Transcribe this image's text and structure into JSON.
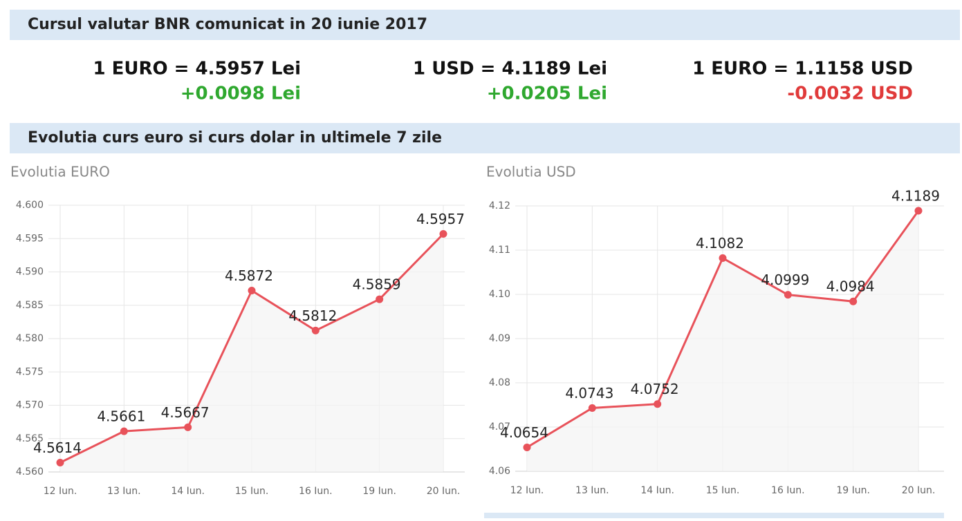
{
  "header": {
    "title": "Cursul valutar BNR comunicat in 20 iunie 2017"
  },
  "rates": [
    {
      "rate": "1 EURO = 4.5957 Lei",
      "change": "+0.0098 Lei",
      "direction": "up"
    },
    {
      "rate": "1 USD = 4.1189 Lei",
      "change": "+0.0205 Lei",
      "direction": "up"
    },
    {
      "rate": "1 EURO = 1.1158 USD",
      "change": "-0.0032 USD",
      "direction": "down"
    }
  ],
  "section": {
    "title": "Evolutia curs euro si curs dolar in ultimele 7 zile"
  },
  "chart_data": [
    {
      "type": "line",
      "title": "Evolutia EURO",
      "categories": [
        "12 Iun.",
        "13 Iun.",
        "14 Iun.",
        "15 Iun.",
        "16 Iun.",
        "19 Iun.",
        "20 Iun."
      ],
      "values": [
        4.5614,
        4.5661,
        4.5667,
        4.5872,
        4.5812,
        4.5859,
        4.5957
      ],
      "color": "#e8525a",
      "grid": true,
      "ylim": [
        4.56,
        4.6
      ],
      "yticks": [
        {
          "value": 4.56,
          "label": "4.560"
        },
        4.565,
        {
          "value": 4.57,
          "label": "4.570"
        },
        4.575,
        {
          "value": 4.58,
          "label": "4.580"
        },
        4.585,
        {
          "value": 4.59,
          "label": "4.590"
        },
        4.595,
        {
          "value": 4.6,
          "label": "4.600"
        }
      ]
    },
    {
      "type": "line",
      "title": "Evolutia USD",
      "categories": [
        "12 Iun.",
        "13 Iun.",
        "14 Iun.",
        "15 Iun.",
        "16 Iun.",
        "19 Iun.",
        "20 Iun."
      ],
      "values": [
        4.0654,
        4.0743,
        4.0752,
        4.1082,
        4.0999,
        4.0984,
        4.1189
      ],
      "color": "#e8525a",
      "grid": true,
      "ylim": [
        4.06,
        4.12
      ],
      "yticks": [
        4.06,
        4.07,
        4.08,
        4.09,
        {
          "value": 4.1,
          "label": "4.10"
        },
        4.11,
        4.12
      ]
    }
  ]
}
